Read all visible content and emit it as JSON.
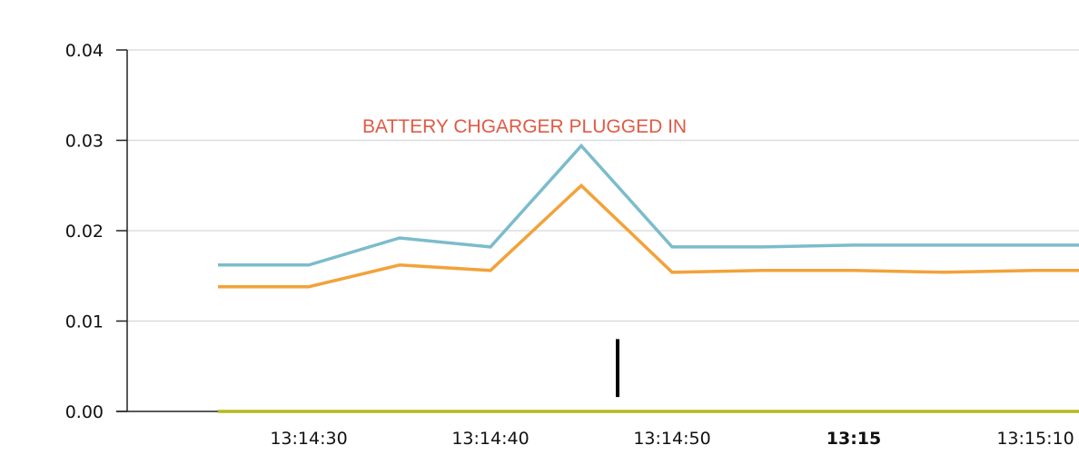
{
  "chart_data": {
    "type": "line",
    "title": "",
    "xlabel": "",
    "ylabel": "",
    "x": [
      "13:14:25",
      "13:14:30",
      "13:14:35",
      "13:14:40",
      "13:14:45",
      "13:14:50",
      "13:14:55",
      "13:15:00",
      "13:15:05",
      "13:15:10",
      "13:15:15"
    ],
    "series": [
      {
        "color": "#7bbccc",
        "values": [
          0.0162,
          0.0162,
          0.0192,
          0.0182,
          0.0294,
          0.0182,
          0.0182,
          0.0184,
          0.0184,
          0.0184,
          0.0184
        ]
      },
      {
        "color": "#f2a23a",
        "values": [
          0.0138,
          0.0138,
          0.0162,
          0.0156,
          0.025,
          0.0154,
          0.0156,
          0.0156,
          0.0154,
          0.0156,
          0.0156
        ]
      },
      {
        "color": "#b5b820",
        "values": [
          0.0,
          0.0,
          0.0,
          0.0,
          0.0,
          0.0,
          0.0,
          0.0,
          0.0,
          0.0,
          0.0
        ]
      }
    ],
    "ylim": [
      0,
      0.04
    ],
    "yticks": [
      "0.04",
      "0.03",
      "0.02",
      "0.01",
      "0.00"
    ],
    "ytick_values": [
      0.04,
      0.03,
      0.02,
      0.01,
      0.0
    ],
    "xticks": [
      {
        "label": "13:14:30",
        "t": "13:14:30",
        "bold": false
      },
      {
        "label": "13:14:40",
        "t": "13:14:40",
        "bold": false
      },
      {
        "label": "13:14:50",
        "t": "13:14:50",
        "bold": false
      },
      {
        "label": "13:15",
        "t": "13:15:00",
        "bold": true
      },
      {
        "label": "13:15:10",
        "t": "13:15:10",
        "bold": false
      }
    ],
    "grid": true,
    "annotation": {
      "text": "BATTERY CHGARGER PLUGGED IN",
      "color": "#e05a45",
      "marker_x": "13:14:47",
      "marker_y": [
        0.0016,
        0.008
      ]
    }
  }
}
